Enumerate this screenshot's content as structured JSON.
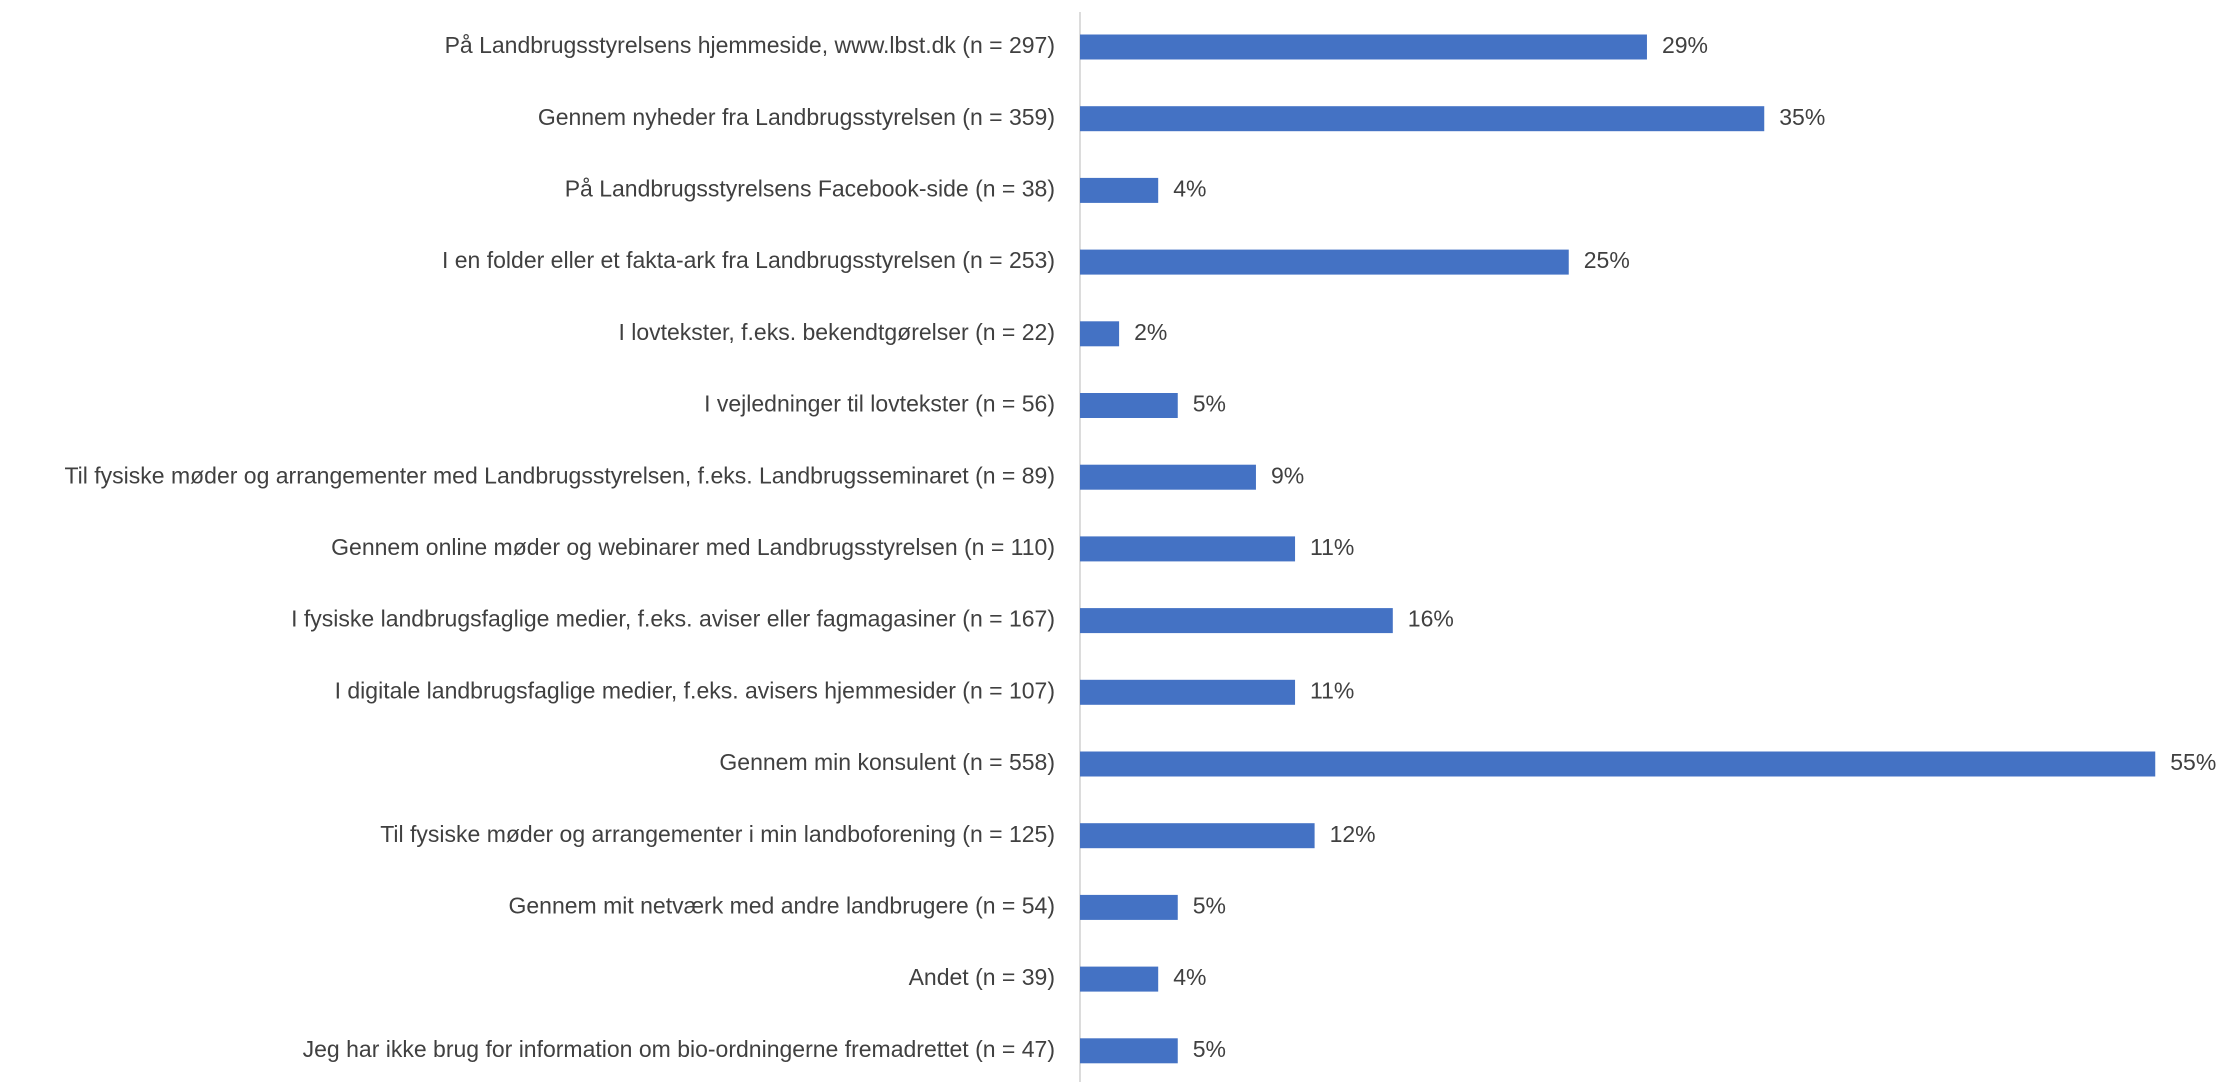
{
  "chart_data": {
    "type": "barh",
    "categories": [
      "På Landbrugsstyrelsens hjemmeside, www.lbst.dk (n = 297)",
      "Gennem nyheder fra Landbrugsstyrelsen (n = 359)",
      "På Landbrugsstyrelsens Facebook-side (n = 38)",
      "I en folder eller et fakta-ark fra Landbrugsstyrelsen (n = 253)",
      "I lovtekster, f.eks. bekendtgørelser (n = 22)",
      "I vejledninger til lovtekster (n = 56)",
      "Til fysiske møder og arrangementer med Landbrugsstyrelsen, f.eks. Landbrugsseminaret (n = 89)",
      "Gennem online møder og webinarer med Landbrugsstyrelsen (n = 110)",
      "I fysiske landbrugsfaglige medier, f.eks. aviser eller fagmagasiner (n = 167)",
      "I digitale landbrugsfaglige medier, f.eks. avisers hjemmesider (n = 107)",
      "Gennem min konsulent (n = 558)",
      "Til fysiske møder og arrangementer i min landboforening (n = 125)",
      "Gennem mit netværk med andre landbrugere (n = 54)",
      "Andet (n = 39)",
      "Jeg har ikke brug for information om bio-ordningerne fremadrettet (n = 47)"
    ],
    "values": [
      29,
      35,
      4,
      25,
      2,
      5,
      9,
      11,
      16,
      11,
      55,
      12,
      5,
      4,
      5
    ],
    "value_labels": [
      "29%",
      "35%",
      "4%",
      "25%",
      "2%",
      "5%",
      "9%",
      "11%",
      "16%",
      "11%",
      "55%",
      "12%",
      "5%",
      "4%",
      "5%"
    ],
    "color": "#4472c4"
  }
}
